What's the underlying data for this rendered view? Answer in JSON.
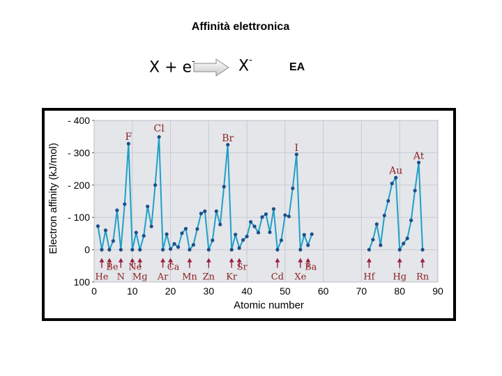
{
  "slide": {
    "title": "Affinità elettronica",
    "eq_left": "X + e",
    "eq_left_sup": "-",
    "eq_right": "X",
    "eq_right_sup": "-",
    "eq_label": "EA"
  },
  "chart_data": {
    "type": "line",
    "ylabel": "Electron affinity (kJ/mol)",
    "xlabel": "Atomic number",
    "ylim": [
      -400,
      100
    ],
    "xlim": [
      0,
      90
    ],
    "yticks": [
      -400,
      -300,
      -200,
      -100,
      0,
      100
    ],
    "yticklabels": [
      "- 400",
      "- 300",
      "- 200",
      "- 100",
      "0",
      "100"
    ],
    "xticks": [
      0,
      10,
      20,
      30,
      40,
      50,
      60,
      70,
      80,
      90
    ],
    "grid": true,
    "colors": {
      "line": "#1f9fc8",
      "point": "#1d4f8a",
      "label": "#8a1f1f",
      "arrow": "#9a1e3c",
      "plot_bg": "#e4e6ea",
      "frame": "#000000"
    },
    "series": [
      {
        "segment": 1,
        "points": [
          [
            1,
            -73
          ],
          [
            2,
            0
          ],
          [
            3,
            -60
          ],
          [
            4,
            0
          ],
          [
            5,
            -27
          ],
          [
            6,
            -122
          ],
          [
            7,
            0
          ],
          [
            8,
            -141
          ],
          [
            9,
            -328
          ],
          [
            10,
            0
          ],
          [
            11,
            -53
          ],
          [
            12,
            0
          ],
          [
            13,
            -43
          ],
          [
            14,
            -134
          ],
          [
            15,
            -72
          ],
          [
            16,
            -200
          ],
          [
            17,
            -349
          ],
          [
            18,
            0
          ],
          [
            19,
            -48
          ],
          [
            20,
            -2
          ],
          [
            21,
            -18
          ],
          [
            22,
            -8
          ],
          [
            23,
            -51
          ],
          [
            24,
            -65
          ],
          [
            25,
            0
          ],
          [
            26,
            -15
          ],
          [
            27,
            -64
          ],
          [
            28,
            -112
          ],
          [
            29,
            -119
          ],
          [
            30,
            0
          ],
          [
            31,
            -29
          ],
          [
            32,
            -119
          ],
          [
            33,
            -78
          ],
          [
            34,
            -195
          ],
          [
            35,
            -325
          ],
          [
            36,
            0
          ],
          [
            37,
            -47
          ],
          [
            38,
            -5
          ],
          [
            39,
            -30
          ],
          [
            40,
            -41
          ],
          [
            41,
            -86
          ],
          [
            42,
            -72
          ],
          [
            43,
            -53
          ],
          [
            44,
            -101
          ],
          [
            45,
            -110
          ],
          [
            46,
            -54
          ],
          [
            47,
            -126
          ],
          [
            48,
            0
          ],
          [
            49,
            -29
          ],
          [
            50,
            -107
          ],
          [
            51,
            -103
          ],
          [
            52,
            -190
          ],
          [
            53,
            -295
          ],
          [
            54,
            0
          ],
          [
            55,
            -46
          ],
          [
            56,
            -14
          ],
          [
            57,
            -48
          ]
        ]
      },
      {
        "segment": 2,
        "points": [
          [
            72,
            0
          ],
          [
            73,
            -31
          ],
          [
            74,
            -79
          ],
          [
            75,
            -14
          ],
          [
            76,
            -106
          ],
          [
            77,
            -151
          ],
          [
            78,
            -205
          ],
          [
            79,
            -223
          ],
          [
            80,
            0
          ],
          [
            81,
            -19
          ],
          [
            82,
            -35
          ],
          [
            83,
            -91
          ],
          [
            84,
            -183
          ],
          [
            85,
            -270
          ],
          [
            86,
            0
          ]
        ]
      }
    ],
    "element_labels_up": [
      {
        "text": "F",
        "z": 9,
        "y": -340
      },
      {
        "text": "Cl",
        "z": 17,
        "y": -365
      },
      {
        "text": "Br",
        "z": 35,
        "y": -335
      },
      {
        "text": "I",
        "z": 53,
        "y": -305
      },
      {
        "text": "Au",
        "z": 79,
        "y": -235
      },
      {
        "text": "At",
        "z": 85,
        "y": -280
      }
    ],
    "element_labels_zero": [
      {
        "text": "Be",
        "z": 4,
        "row": 1
      },
      {
        "text": "He",
        "z": 2,
        "row": 2
      },
      {
        "text": "N",
        "z": 7,
        "row": 2
      },
      {
        "text": "Ne",
        "z": 10,
        "row": 1
      },
      {
        "text": "Mg",
        "z": 12,
        "row": 2
      },
      {
        "text": "Ar",
        "z": 18,
        "row": 2
      },
      {
        "text": "Ca",
        "z": 20,
        "row": 1
      },
      {
        "text": "Mn",
        "z": 25,
        "row": 2
      },
      {
        "text": "Zn",
        "z": 30,
        "row": 2
      },
      {
        "text": "Kr",
        "z": 36,
        "row": 2
      },
      {
        "text": "Sr",
        "z": 38,
        "row": 1
      },
      {
        "text": "Cd",
        "z": 48,
        "row": 2
      },
      {
        "text": "Xe",
        "z": 54,
        "row": 2
      },
      {
        "text": "Ba",
        "z": 56,
        "row": 1
      },
      {
        "text": "Hf",
        "z": 72,
        "row": 2
      },
      {
        "text": "Hg",
        "z": 80,
        "row": 2
      },
      {
        "text": "Rn",
        "z": 86,
        "row": 2
      }
    ],
    "arrow_z": [
      2,
      4,
      7,
      10,
      12,
      18,
      20,
      25,
      30,
      36,
      38,
      48,
      54,
      56,
      72,
      80,
      86
    ]
  }
}
